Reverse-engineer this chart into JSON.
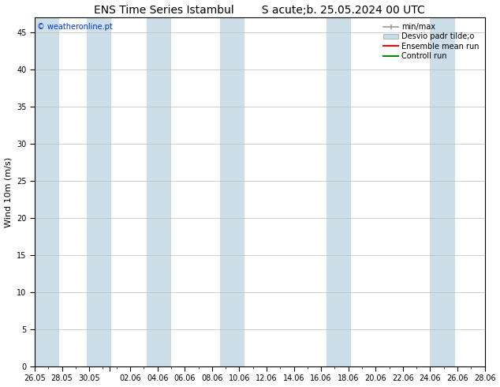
{
  "title_left": "ENS Time Series Istambul",
  "title_right": "S acute;b. 25.05.2024 00 UTC",
  "ylabel": "Wind 10m (m/s)",
  "ylim": [
    0,
    47
  ],
  "yticks": [
    0,
    5,
    10,
    15,
    20,
    25,
    30,
    35,
    40,
    45
  ],
  "background_color": "#ffffff",
  "plot_bg_color": "#ffffff",
  "watermark": "© weatheronline.pt",
  "legend_labels": [
    "min/max",
    "Desvio padr tilde;o",
    "Ensemble mean run",
    "Controll run"
  ],
  "legend_colors": [
    "#999999",
    "#c8dde8",
    "#ff0000",
    "#008800"
  ],
  "xtick_labels": [
    "26.05",
    "28.05",
    "30.05",
    "",
    "02.06",
    "04.06",
    "06.06",
    "08.06",
    "10.06",
    "12.06",
    "14.06",
    "16.06",
    "18.06",
    "20.06",
    "22.06",
    "24.06",
    "26.06",
    "28.06"
  ],
  "xtick_positions": [
    0,
    2,
    4,
    5.5,
    7,
    9,
    11,
    13,
    15,
    17,
    19,
    21,
    23,
    25,
    27,
    29,
    31,
    33
  ],
  "xlim": [
    0,
    33
  ],
  "shaded_bands": [
    [
      0.0,
      1.8
    ],
    [
      3.8,
      5.6
    ],
    [
      8.2,
      10.0
    ],
    [
      13.6,
      15.4
    ],
    [
      21.4,
      23.2
    ],
    [
      29.0,
      30.8
    ]
  ],
  "shade_color": "#ccdee8",
  "title_fontsize": 10,
  "tick_fontsize": 7,
  "label_fontsize": 8,
  "legend_fontsize": 7
}
